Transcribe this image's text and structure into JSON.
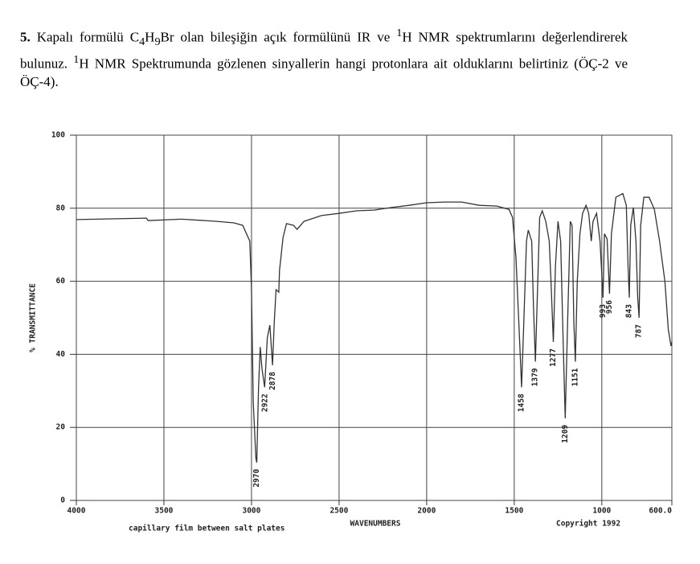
{
  "question": {
    "number": "5.",
    "parts": [
      "Kapalı formülü C",
      "4",
      "H",
      "9",
      "Br olan bileşiğin açık formülünü IR ve ",
      "1",
      "H NMR spektrumlarını değerlendirerek bulunuz. ",
      "1",
      "H NMR Spektrumunda gözlenen sinyallerin hangi protonlara ait olduklarını belirtiniz (ÖÇ-2 ve ÖÇ-4)."
    ]
  },
  "chart_data": {
    "type": "line",
    "xlabel": "WAVENUMBERS",
    "ylabel": "% TRANSMITTANCE",
    "note": "capillary film between salt plates",
    "copyright": "Copyright 1992",
    "color": "#333333",
    "grid": true,
    "xlim": [
      4000,
      600
    ],
    "ylim": [
      0,
      100
    ],
    "xticks": [
      4000,
      3500,
      3000,
      2500,
      2000,
      1500,
      1000,
      {
        "value": 600,
        "label": "600.0"
      }
    ],
    "yticks": [
      0,
      20,
      40,
      60,
      80,
      100
    ],
    "x": [
      4000,
      3800,
      3600,
      3590,
      3400,
      3200,
      3100,
      3050,
      3010,
      3000,
      2990,
      2975,
      2970,
      2960,
      2950,
      2940,
      2925,
      2910,
      2895,
      2880,
      2870,
      2860,
      2844,
      2840,
      2820,
      2800,
      2760,
      2740,
      2700,
      2600,
      2500,
      2400,
      2300,
      2200,
      2100,
      2000,
      1900,
      1800,
      1700,
      1600,
      1530,
      1510,
      1490,
      1470,
      1458,
      1445,
      1430,
      1420,
      1400,
      1390,
      1379,
      1370,
      1355,
      1340,
      1320,
      1300,
      1290,
      1277,
      1265,
      1250,
      1235,
      1220,
      1209,
      1195,
      1180,
      1170,
      1160,
      1151,
      1140,
      1125,
      1110,
      1090,
      1075,
      1060,
      1050,
      1030,
      1010,
      993,
      985,
      970,
      956,
      945,
      920,
      880,
      860,
      850,
      843,
      835,
      820,
      805,
      795,
      787,
      778,
      760,
      730,
      700,
      670,
      640,
      620,
      605,
      600
    ],
    "values": [
      76.9,
      77.1,
      77.3,
      76.6,
      77,
      76.4,
      76,
      75.3,
      71,
      58,
      27,
      11.5,
      10.4,
      31,
      42,
      36,
      31,
      44.5,
      48,
      37,
      49,
      57.7,
      57,
      63,
      72,
      75.8,
      75.3,
      74.2,
      76.4,
      78,
      78.6,
      79.3,
      79.5,
      80.2,
      80.8,
      81.5,
      81.7,
      81.7,
      80.8,
      80.6,
      79.7,
      77.5,
      66.5,
      44.5,
      31,
      49,
      71,
      74,
      71,
      53,
      38,
      53,
      77.5,
      79.3,
      76.4,
      71,
      60,
      43.4,
      64,
      76.4,
      71,
      42,
      22.5,
      49,
      76.4,
      75.3,
      49,
      38,
      60,
      73,
      78.6,
      80.8,
      78.6,
      71,
      76.4,
      78.6,
      71,
      55.5,
      73,
      71.6,
      56.6,
      73,
      83,
      84,
      80.8,
      64,
      55.5,
      75.3,
      80.2,
      71,
      55.5,
      50,
      75.3,
      83,
      83,
      79.7,
      71,
      60,
      46.7,
      42.3,
      43.4
    ],
    "peaks": {
      "x": [
        2970,
        2922,
        2878,
        1458,
        1379,
        1277,
        1209,
        1151,
        993,
        956,
        843,
        787
      ],
      "values": [
        10.4,
        31,
        37,
        31,
        38,
        43.4,
        22.5,
        38,
        55.5,
        56.6,
        55.5,
        50
      ]
    }
  }
}
